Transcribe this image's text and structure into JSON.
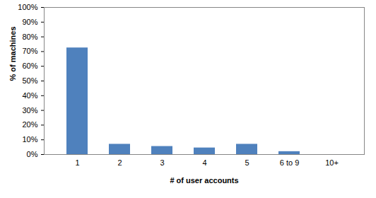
{
  "chart_data": {
    "type": "bar",
    "x_label": "# of user accounts",
    "y_label": "% of machines",
    "categories": [
      "1",
      "2",
      "3",
      "4",
      "5",
      "6 to 9",
      "10+"
    ],
    "values": [
      72.5,
      7,
      5.5,
      4.5,
      7,
      2,
      0
    ],
    "color": "#4f81bd",
    "ylim": [
      0,
      100
    ],
    "yticks": [
      {
        "value": 0,
        "label": "0%"
      },
      {
        "value": 10,
        "label": "10%"
      },
      {
        "value": 20,
        "label": "20%"
      },
      {
        "value": 30,
        "label": "30%"
      },
      {
        "value": 40,
        "label": "40%"
      },
      {
        "value": 50,
        "label": "50%"
      },
      {
        "value": 60,
        "label": "60%"
      },
      {
        "value": 70,
        "label": "70%"
      },
      {
        "value": 80,
        "label": "80%"
      },
      {
        "value": 90,
        "label": "90%"
      },
      {
        "value": 100,
        "label": "100%"
      }
    ],
    "grid": false
  }
}
